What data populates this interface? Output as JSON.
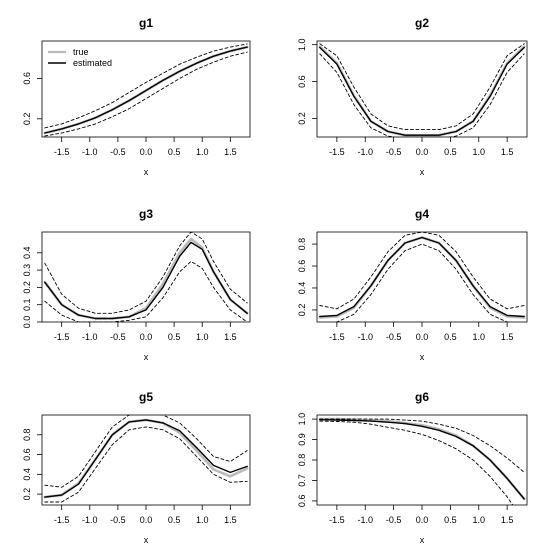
{
  "legend": {
    "entries": [
      {
        "label": "true",
        "color": "#bbbbbb",
        "dash": false
      },
      {
        "label": "estimated",
        "color": "#000000",
        "dash": false
      }
    ]
  },
  "style": {
    "true_color": "#bbbbbb",
    "estimate_color": "#000000",
    "band_color": "#000000"
  },
  "chart_data": [
    {
      "type": "line",
      "title": "g1",
      "xlabel": "x",
      "xlim": [
        -1.85,
        1.85
      ],
      "ylim": [
        0.02,
        0.97
      ],
      "xticks": [
        -1.5,
        -1.0,
        -0.5,
        0.0,
        0.5,
        1.0,
        1.5
      ],
      "xtick_labels": [
        "-1.5",
        "-1.0",
        "-0.5",
        "0.0",
        "0.5",
        "1.0",
        "1.5"
      ],
      "yticks": [
        0.2,
        0.6
      ],
      "ytick_labels": [
        "0.2",
        "0.6"
      ],
      "legend": "top-left",
      "x": [
        -1.8,
        -1.5,
        -1.2,
        -0.9,
        -0.6,
        -0.3,
        0.0,
        0.3,
        0.6,
        0.9,
        1.2,
        1.5,
        1.8
      ],
      "series": [
        {
          "role": "true",
          "values": [
            0.06,
            0.1,
            0.15,
            0.21,
            0.29,
            0.38,
            0.48,
            0.58,
            0.67,
            0.75,
            0.82,
            0.87,
            0.91
          ]
        },
        {
          "role": "estimated",
          "values": [
            0.06,
            0.1,
            0.15,
            0.21,
            0.29,
            0.38,
            0.48,
            0.58,
            0.67,
            0.75,
            0.82,
            0.87,
            0.91
          ]
        },
        {
          "role": "upper",
          "values": [
            0.11,
            0.15,
            0.21,
            0.28,
            0.36,
            0.46,
            0.56,
            0.65,
            0.74,
            0.81,
            0.87,
            0.91,
            0.94
          ]
        },
        {
          "role": "lower",
          "values": [
            0.03,
            0.06,
            0.1,
            0.15,
            0.22,
            0.3,
            0.4,
            0.5,
            0.6,
            0.69,
            0.76,
            0.82,
            0.86
          ]
        }
      ]
    },
    {
      "type": "line",
      "title": "g2",
      "xlabel": "x",
      "xlim": [
        -1.85,
        1.85
      ],
      "ylim": [
        0.0,
        1.04
      ],
      "xticks": [
        -1.5,
        -1.0,
        -0.5,
        0.0,
        0.5,
        1.0,
        1.5
      ],
      "xtick_labels": [
        "-1.5",
        "-1.0",
        "-0.5",
        "0.0",
        "0.5",
        "1.0",
        "1.5"
      ],
      "yticks": [
        0.2,
        0.6,
        1.0
      ],
      "ytick_labels": [
        "0.2",
        "0.6",
        "1.0"
      ],
      "x": [
        -1.8,
        -1.5,
        -1.2,
        -0.9,
        -0.6,
        -0.3,
        0.0,
        0.3,
        0.6,
        0.9,
        1.2,
        1.5,
        1.8
      ],
      "series": [
        {
          "role": "true",
          "values": [
            0.98,
            0.8,
            0.45,
            0.17,
            0.06,
            0.02,
            0.02,
            0.02,
            0.06,
            0.17,
            0.45,
            0.8,
            0.98
          ]
        },
        {
          "role": "estimated",
          "values": [
            0.97,
            0.79,
            0.44,
            0.17,
            0.06,
            0.02,
            0.02,
            0.02,
            0.06,
            0.17,
            0.44,
            0.79,
            0.97
          ]
        },
        {
          "role": "upper",
          "values": [
            1.01,
            0.88,
            0.54,
            0.25,
            0.12,
            0.08,
            0.08,
            0.08,
            0.12,
            0.25,
            0.54,
            0.88,
            1.01
          ]
        },
        {
          "role": "lower",
          "values": [
            0.9,
            0.7,
            0.35,
            0.1,
            0.01,
            -0.02,
            -0.02,
            -0.02,
            0.01,
            0.1,
            0.35,
            0.7,
            0.9
          ]
        }
      ]
    },
    {
      "type": "line",
      "title": "g3",
      "xlabel": "x",
      "xlim": [
        -1.85,
        1.85
      ],
      "ylim": [
        0.0,
        0.52
      ],
      "xticks": [
        -1.5,
        -1.0,
        -0.5,
        0.0,
        0.5,
        1.0,
        1.5
      ],
      "xtick_labels": [
        "-1.5",
        "-1.0",
        "-0.5",
        "0.0",
        "0.5",
        "1.0",
        "1.5"
      ],
      "yticks": [
        0.0,
        0.1,
        0.2,
        0.3,
        0.4
      ],
      "ytick_labels": [
        "0.0",
        "0.1",
        "0.2",
        "0.3",
        "0.4"
      ],
      "x": [
        -1.8,
        -1.5,
        -1.2,
        -0.9,
        -0.6,
        -0.3,
        0.0,
        0.3,
        0.6,
        0.8,
        1.0,
        1.2,
        1.5,
        1.8
      ],
      "series": [
        {
          "role": "true",
          "values": [
            0.23,
            0.1,
            0.04,
            0.02,
            0.02,
            0.03,
            0.08,
            0.22,
            0.4,
            0.48,
            0.43,
            0.29,
            0.13,
            0.05
          ]
        },
        {
          "role": "estimated",
          "values": [
            0.23,
            0.1,
            0.04,
            0.02,
            0.02,
            0.03,
            0.07,
            0.2,
            0.38,
            0.46,
            0.42,
            0.29,
            0.13,
            0.05
          ]
        },
        {
          "role": "upper",
          "values": [
            0.34,
            0.16,
            0.08,
            0.05,
            0.05,
            0.07,
            0.12,
            0.26,
            0.44,
            0.52,
            0.48,
            0.35,
            0.19,
            0.11
          ]
        },
        {
          "role": "lower",
          "values": [
            0.12,
            0.04,
            0.0,
            0.0,
            0.0,
            0.01,
            0.03,
            0.14,
            0.29,
            0.35,
            0.31,
            0.2,
            0.07,
            0.0
          ]
        }
      ]
    },
    {
      "type": "line",
      "title": "g4",
      "xlabel": "x",
      "xlim": [
        -1.85,
        1.85
      ],
      "ylim": [
        0.09,
        0.91
      ],
      "xticks": [
        -1.5,
        -1.0,
        -0.5,
        0.0,
        0.5,
        1.0,
        1.5
      ],
      "xtick_labels": [
        "-1.5",
        "-1.0",
        "-0.5",
        "0.0",
        "0.5",
        "1.0",
        "1.5"
      ],
      "yticks": [
        0.2,
        0.4,
        0.6,
        0.8
      ],
      "ytick_labels": [
        "0.2",
        "0.4",
        "0.6",
        "0.8"
      ],
      "x": [
        -1.8,
        -1.5,
        -1.2,
        -0.9,
        -0.6,
        -0.3,
        0.0,
        0.3,
        0.6,
        0.9,
        1.2,
        1.5,
        1.8
      ],
      "series": [
        {
          "role": "true",
          "values": [
            0.13,
            0.14,
            0.22,
            0.42,
            0.65,
            0.81,
            0.86,
            0.81,
            0.65,
            0.42,
            0.22,
            0.14,
            0.13
          ]
        },
        {
          "role": "estimated",
          "values": [
            0.14,
            0.15,
            0.23,
            0.42,
            0.65,
            0.81,
            0.86,
            0.81,
            0.65,
            0.42,
            0.23,
            0.15,
            0.14
          ]
        },
        {
          "role": "upper",
          "values": [
            0.24,
            0.21,
            0.3,
            0.5,
            0.73,
            0.88,
            0.91,
            0.88,
            0.73,
            0.5,
            0.3,
            0.21,
            0.24
          ]
        },
        {
          "role": "lower",
          "values": [
            0.07,
            0.09,
            0.16,
            0.34,
            0.57,
            0.74,
            0.8,
            0.74,
            0.57,
            0.34,
            0.16,
            0.09,
            0.07
          ]
        }
      ]
    },
    {
      "type": "line",
      "title": "g5",
      "xlabel": "x",
      "xlim": [
        -1.85,
        1.85
      ],
      "ylim": [
        0.09,
        1.0
      ],
      "xticks": [
        -1.5,
        -1.0,
        -0.5,
        0.0,
        0.5,
        1.0,
        1.5
      ],
      "xtick_labels": [
        "-1.5",
        "-1.0",
        "-0.5",
        "0.0",
        "0.5",
        "1.0",
        "1.5"
      ],
      "yticks": [
        0.2,
        0.4,
        0.6,
        0.8
      ],
      "ytick_labels": [
        "0.2",
        "0.4",
        "0.6",
        "0.8"
      ],
      "x": [
        -1.8,
        -1.5,
        -1.2,
        -0.9,
        -0.6,
        -0.3,
        0.0,
        0.3,
        0.6,
        0.9,
        1.2,
        1.5,
        1.8
      ],
      "series": [
        {
          "role": "true",
          "values": [
            0.17,
            0.19,
            0.31,
            0.55,
            0.8,
            0.93,
            0.95,
            0.92,
            0.82,
            0.64,
            0.45,
            0.38,
            0.46
          ]
        },
        {
          "role": "estimated",
          "values": [
            0.17,
            0.19,
            0.3,
            0.55,
            0.8,
            0.93,
            0.95,
            0.92,
            0.84,
            0.67,
            0.49,
            0.42,
            0.48
          ]
        },
        {
          "role": "upper",
          "values": [
            0.29,
            0.27,
            0.38,
            0.63,
            0.88,
            1.0,
            1.02,
            1.0,
            0.92,
            0.76,
            0.58,
            0.53,
            0.64
          ]
        },
        {
          "role": "lower",
          "values": [
            0.12,
            0.12,
            0.22,
            0.46,
            0.7,
            0.85,
            0.88,
            0.85,
            0.76,
            0.58,
            0.4,
            0.32,
            0.33
          ]
        }
      ]
    },
    {
      "type": "line",
      "title": "g6",
      "xlabel": "x",
      "xlim": [
        -1.85,
        1.85
      ],
      "ylim": [
        0.58,
        1.02
      ],
      "xticks": [
        -1.5,
        -1.0,
        -0.5,
        0.0,
        0.5,
        1.0,
        1.5
      ],
      "xtick_labels": [
        "-1.5",
        "-1.0",
        "-0.5",
        "0.0",
        "0.5",
        "1.0",
        "1.5"
      ],
      "yticks": [
        0.6,
        0.7,
        0.8,
        0.9,
        1.0
      ],
      "ytick_labels": [
        "0.6",
        "0.7",
        "0.8",
        "0.9",
        "1.0"
      ],
      "x": [
        -1.8,
        -1.5,
        -1.2,
        -0.9,
        -0.6,
        -0.3,
        0.0,
        0.3,
        0.6,
        0.9,
        1.2,
        1.5,
        1.8
      ],
      "series": [
        {
          "role": "true",
          "values": [
            1.0,
            1.0,
            0.998,
            0.995,
            0.99,
            0.98,
            0.97,
            0.95,
            0.92,
            0.87,
            0.8,
            0.71,
            0.61
          ]
        },
        {
          "role": "estimated",
          "values": [
            0.997,
            0.995,
            0.993,
            0.99,
            0.985,
            0.978,
            0.965,
            0.945,
            0.915,
            0.87,
            0.8,
            0.71,
            0.61
          ]
        },
        {
          "role": "upper",
          "values": [
            1.0,
            1.0,
            1.0,
            1.0,
            1.0,
            0.995,
            0.99,
            0.975,
            0.955,
            0.92,
            0.87,
            0.81,
            0.74
          ]
        },
        {
          "role": "lower",
          "values": [
            0.99,
            0.988,
            0.985,
            0.975,
            0.96,
            0.945,
            0.925,
            0.895,
            0.855,
            0.8,
            0.72,
            0.62,
            0.5
          ]
        }
      ]
    }
  ]
}
